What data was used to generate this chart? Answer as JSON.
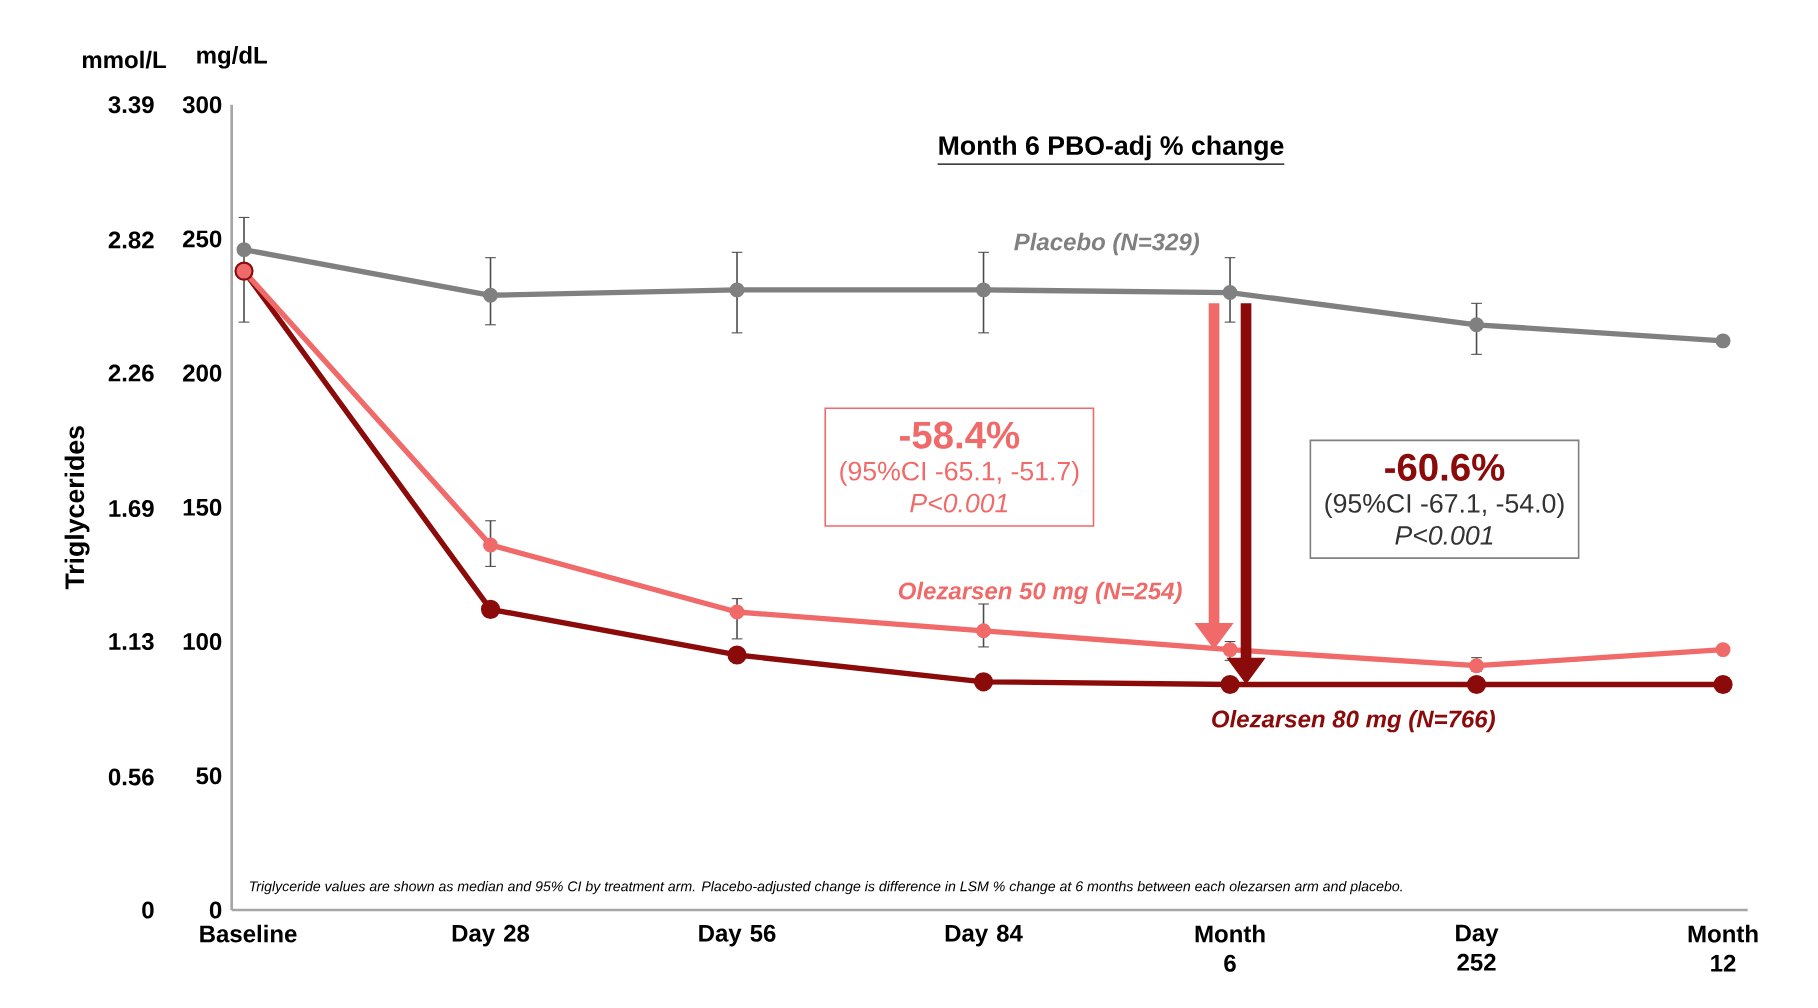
{
  "chart_data": {
    "type": "line",
    "title": "Month 6 PBO-adj % change",
    "y2label": "Triglycerides",
    "categories": [
      "Baseline",
      "Day 28",
      "Day 56",
      "Day 84",
      "Month 6",
      "Day 252",
      "Month 12"
    ],
    "ylim": [
      0,
      300
    ],
    "yticks": [
      0,
      50,
      100,
      150,
      200,
      250,
      300
    ],
    "y2lim": [
      0,
      3.39
    ],
    "y2ticks": [
      0,
      0.56,
      1.13,
      1.69,
      2.26,
      2.82,
      3.39
    ],
    "marker": "circle",
    "line_style": "solid",
    "grid": false,
    "legend": false,
    "series": [
      {
        "name": "Placebo (N=329)",
        "color": "#808080",
        "values": [
          246,
          229,
          231,
          231,
          230,
          218,
          212
        ],
        "errors": [
          [
            219,
            258
          ],
          [
            218,
            243
          ],
          [
            215,
            245
          ],
          [
            215,
            245
          ],
          [
            219,
            243
          ],
          [
            207,
            226
          ],
          null
        ]
      },
      {
        "name": "Olezarsen 50 mg (N=254)",
        "color": "#f06a6a",
        "values": [
          238,
          136,
          111,
          104,
          97,
          91,
          97
        ],
        "errors": [
          null,
          [
            128,
            145
          ],
          [
            101,
            116
          ],
          [
            98,
            114
          ],
          [
            93,
            100
          ],
          [
            89,
            94
          ],
          null
        ]
      },
      {
        "name": "Olezarsen 80 mg (N=766)",
        "color": "#8b0a0a",
        "values": [
          238,
          112,
          95,
          85,
          84,
          84,
          84
        ]
      }
    ],
    "annotations": [
      "-58.4%",
      "(95%CI -65.1, -51.7)",
      "P<0.001",
      "-60.6%",
      "(95%CI -67.1, -54.0)",
      "P<0.001",
      "mg/dL",
      "mmol/L",
      "Triglyceride values are shown as median and 95% CI by treatment arm. Placebo-adjusted change is difference in LSM % change at 6 months between each olezarsen arm and placebo."
    ]
  }
}
